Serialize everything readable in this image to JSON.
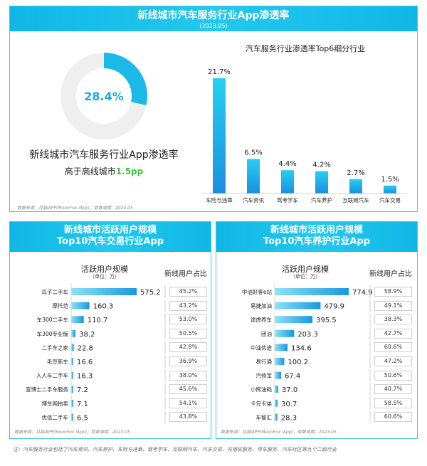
{
  "top": {
    "title": "新线城市汽车服务行业App渗透率",
    "subtitle": "(2023.05)",
    "donut_value_label": "28.4%",
    "donut_fraction": 0.284,
    "caption": "新线城市汽车服务行业App渗透率",
    "compare_prefix": "高于高线城市",
    "compare_value": "1.5pp",
    "source": "数据来源：月狐iAPP(MoonFox iApp)；取数周期：2023.05",
    "colors": {
      "accent": "#1cb8e8",
      "donut_bg": "#efefef",
      "highlight": "#3cc43c"
    }
  },
  "chart_data": [
    {
      "type": "bar",
      "title": "汽车服务行业渗透率Top6细分行业",
      "categories": [
        "车险与违章",
        "汽车资讯",
        "驾考学车",
        "汽车养护",
        "互联网汽车",
        "汽车交易"
      ],
      "values": [
        21.7,
        6.5,
        4.4,
        4.2,
        2.7,
        1.5
      ],
      "value_labels": [
        "21.7%",
        "6.5%",
        "4.4%",
        "4.2%",
        "2.7%",
        "1.5%"
      ],
      "ylim": [
        0,
        21.7
      ]
    },
    {
      "type": "bar",
      "orientation": "horizontal",
      "title_line1": "新线城市活跃用户规模",
      "title_line2": "Top10汽车交易行业App",
      "value_header": "活跃用户规模",
      "value_unit": "（单位：万）",
      "pct_header": "新线用户占比",
      "categories": [
        "瓜子二手车",
        "摩托范",
        "车300二手车",
        "车300专业版",
        "二手车之家",
        "毛豆新车",
        "人人车二手车",
        "查博士二手车服务",
        "博车网拍卖",
        "优信二手车"
      ],
      "values": [
        575.2,
        160.3,
        110.7,
        38.2,
        22.8,
        16.6,
        16.3,
        7.2,
        7.1,
        6.5
      ],
      "value_labels": [
        "575.2",
        "160.3",
        "110.7",
        "38.2",
        "22.8",
        "16.6",
        "16.3",
        "7.2",
        "7.1",
        "6.5"
      ],
      "share": [
        "45.2%",
        "43.2%",
        "53.0%",
        "50.5%",
        "42.8%",
        "36.9%",
        "38.0%",
        "45.6%",
        "54.1%",
        "43.8%"
      ],
      "source": "数据来源：月狐iAPP(MoonFox iApp)；取数周期：2023.05"
    },
    {
      "type": "bar",
      "orientation": "horizontal",
      "title_line1": "新线城市活跃用户规模",
      "title_line2": "Top10汽车养护行业App",
      "value_header": "活跃用户规模",
      "value_unit": "（单位：万）",
      "pct_header": "新线用户占比",
      "categories": [
        "中油好客e站",
        "易捷加油",
        "途虎养车",
        "团油",
        "中油优途",
        "易行通",
        "汽修宝",
        "小熊油耗",
        "卡兄卡弟",
        "车智汇"
      ],
      "values": [
        774.9,
        479.9,
        395.5,
        203.3,
        134.6,
        100.2,
        67.4,
        37.0,
        30.7,
        28.3
      ],
      "value_labels": [
        "774.9",
        "479.9",
        "395.5",
        "203.3",
        "134.6",
        "100.2",
        "67.4",
        "37.0",
        "30.7",
        "28.3"
      ],
      "share": [
        "58.9%",
        "49.1%",
        "38.3%",
        "42.7%",
        "60.6%",
        "47.2%",
        "50.6%",
        "40.7%",
        "58.5%",
        "60.6%"
      ],
      "source": "数据来源：月狐iAPP(MoonFox iApp)；取数周期：2023.05"
    }
  ],
  "footnote": "注：汽车服务行业包括了汽车资讯、汽车养护、车险与违章、驾考学车、互联网汽车、汽车交易、充电桩服务、停车服务、汽车社区等九个二级行业"
}
